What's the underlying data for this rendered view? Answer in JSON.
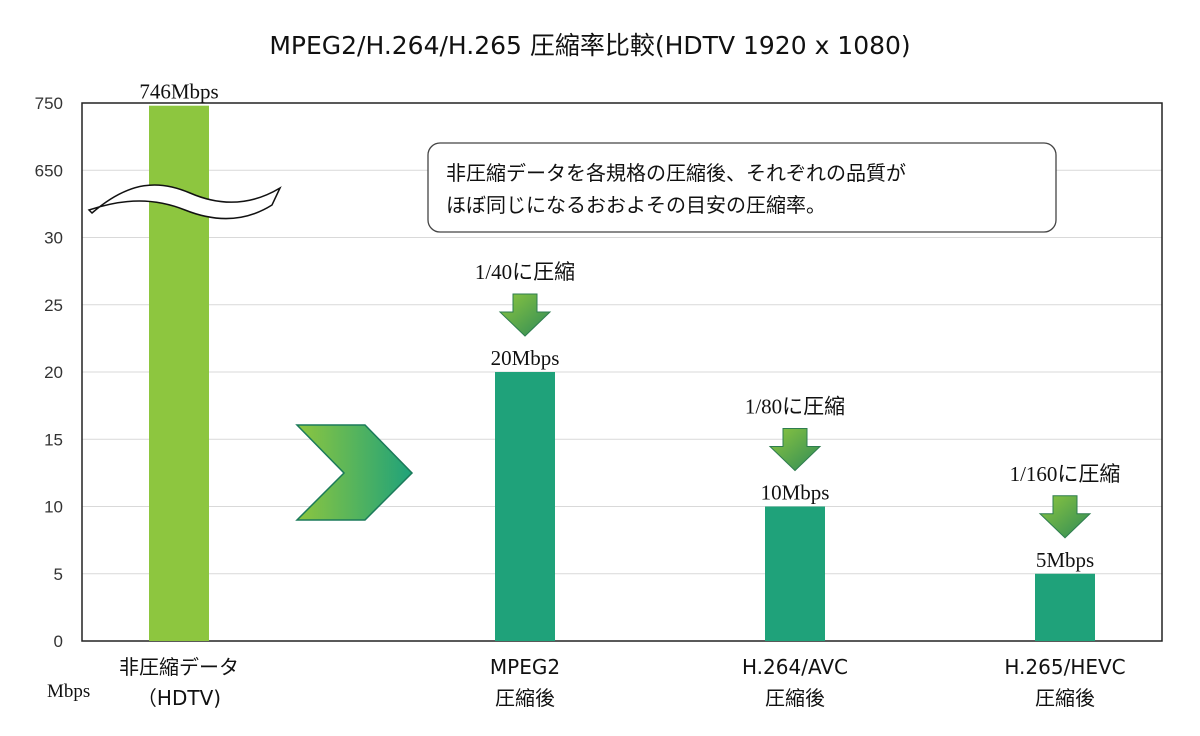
{
  "chart_data": {
    "type": "bar",
    "title": "MPEG2/H.264/H.265 圧縮率比較(HDTV 1920 x 1080)",
    "ylabel": "Mbps",
    "y_ticks": [
      "0",
      "5",
      "10",
      "15",
      "20",
      "25",
      "30",
      "650",
      "750"
    ],
    "axis_break": "between 30 and 650",
    "categories": [
      [
        "非圧縮データ",
        "（HDTV)"
      ],
      [
        "MPEG2",
        "圧縮後"
      ],
      [
        "H.264/AVC",
        "圧縮後"
      ],
      [
        "H.265/HEVC",
        "圧縮後"
      ]
    ],
    "values": [
      746,
      20,
      10,
      5
    ],
    "value_labels": [
      "746Mbps",
      "20Mbps",
      "10Mbps",
      "5Mbps"
    ],
    "ratio_labels": [
      "",
      "1/40に圧縮",
      "1/80に圧縮",
      "1/160に圧縮"
    ],
    "bar_colors": [
      "#8dc63f",
      "#1fa27a",
      "#1fa27a",
      "#1fa27a"
    ],
    "grid": true,
    "legend": "none"
  },
  "annotation": {
    "lines": [
      "非圧縮データを各規格の圧縮後、それぞれの品質が",
      "ほぼ同じになるおおよその目安の圧縮率。"
    ]
  },
  "colors": {
    "arrow_light": "#8dc63f",
    "arrow_dark": "#1fa27a",
    "grid": "#d9d9d9",
    "axis": "#222222"
  }
}
